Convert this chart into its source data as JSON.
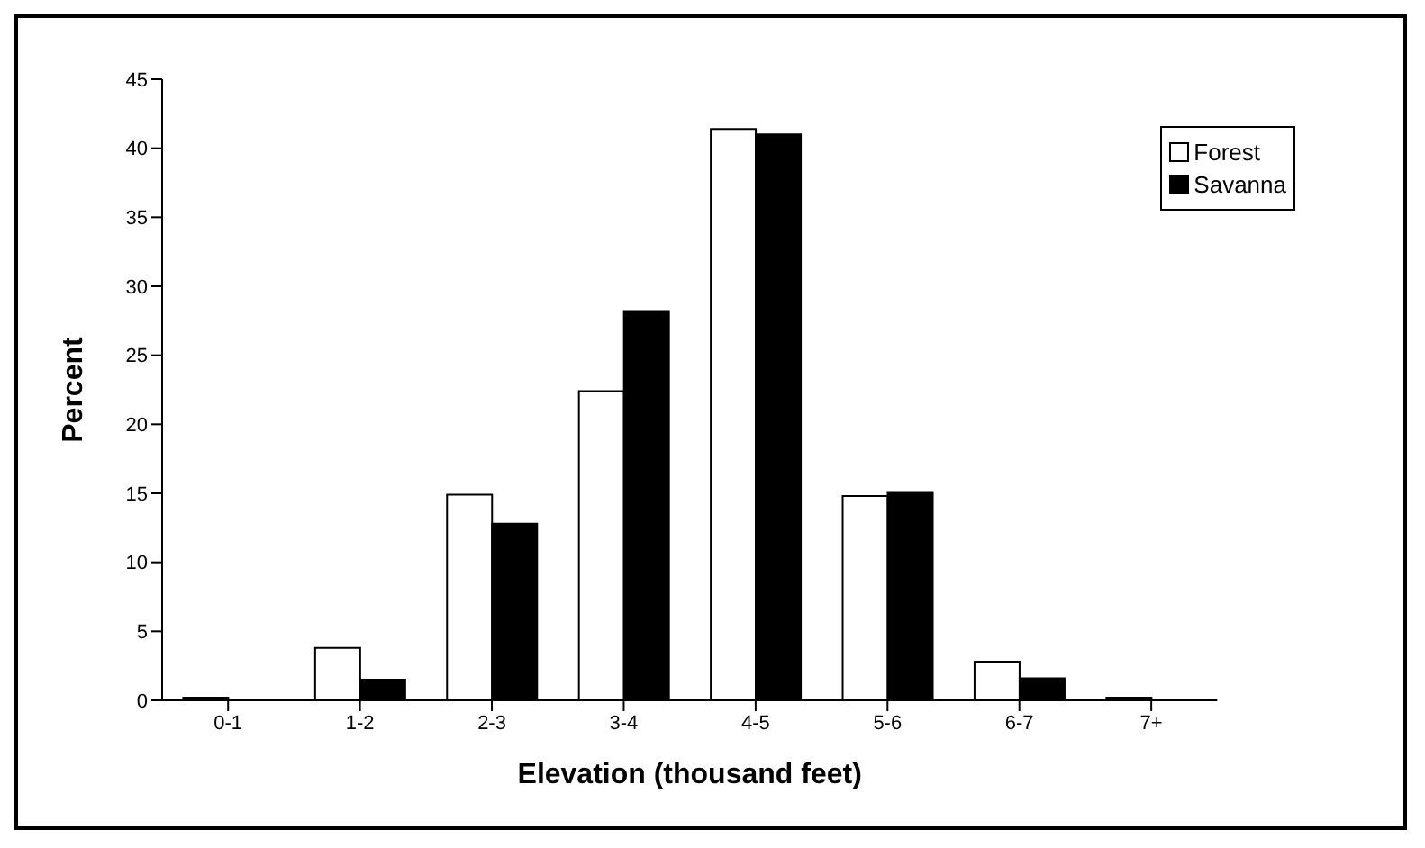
{
  "chart_data": {
    "type": "bar",
    "xlabel": "Elevation (thousand feet)",
    "ylabel": "Percent",
    "categories": [
      "0-1",
      "1-2",
      "2-3",
      "3-4",
      "4-5",
      "5-6",
      "6-7",
      "7+"
    ],
    "series": [
      {
        "name": "Forest",
        "color": "#ffffff",
        "values": [
          0.2,
          3.8,
          14.9,
          22.4,
          41.4,
          14.8,
          2.8,
          0.2
        ]
      },
      {
        "name": "Savanna",
        "color": "#000000",
        "values": [
          0,
          1.5,
          12.8,
          28.2,
          41.0,
          15.1,
          1.6,
          0
        ]
      }
    ],
    "ylim": [
      0,
      45
    ],
    "yticks": [
      0,
      5,
      10,
      15,
      20,
      25,
      30,
      35,
      40,
      45
    ],
    "grid": false,
    "legend": "top right"
  }
}
